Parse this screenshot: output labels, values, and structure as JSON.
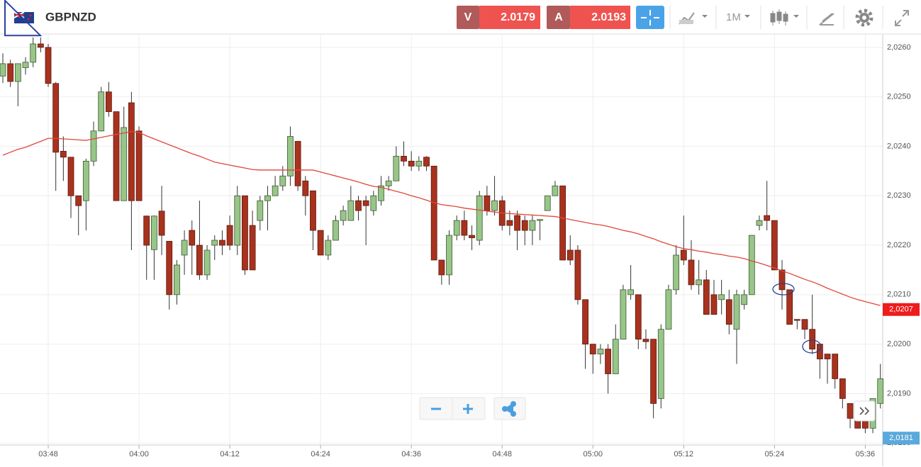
{
  "toolbar": {
    "symbol": "GBPNZD",
    "sell_label": "V",
    "sell_price": "2.0179",
    "buy_label": "A",
    "buy_price": "2.0193",
    "timeframe": "1M"
  },
  "chart_data": {
    "type": "candlestick",
    "categories": [
      null,
      null,
      null,
      null,
      null,
      null,
      "03:48",
      null,
      null,
      null,
      null,
      null,
      null,
      null,
      null,
      null,
      null,
      null,
      "04:00",
      null,
      null,
      null,
      null,
      null,
      null,
      null,
      null,
      null,
      null,
      null,
      "04:12",
      null,
      null,
      null,
      null,
      null,
      null,
      null,
      null,
      null,
      null,
      null,
      "04:24",
      null,
      null,
      null,
      null,
      null,
      null,
      null,
      null,
      null,
      null,
      null,
      "04:36",
      null,
      null,
      null,
      null,
      null,
      null,
      null,
      null,
      null,
      null,
      null,
      "04:48",
      null,
      null,
      null,
      null,
      null,
      null,
      null,
      null,
      null,
      null,
      null,
      "05:00",
      null,
      null,
      null,
      null,
      null,
      null,
      null,
      null,
      null,
      null,
      null,
      "05:12",
      null,
      null,
      null,
      null,
      null,
      null,
      null,
      null,
      null,
      null,
      null,
      "05:24",
      null,
      null,
      null,
      null,
      null,
      null,
      null,
      null,
      null,
      null,
      null,
      "05:36",
      null,
      null
    ],
    "open": [
      2.02542,
      2.02567,
      2.02531,
      2.02559,
      2.0257,
      2.02607,
      2.026,
      2.02527,
      2.0239,
      2.02378,
      2.023,
      2.0229,
      2.0237,
      2.02431,
      2.0251,
      2.0247,
      2.0229,
      2.02488,
      2.02431,
      2.02259,
      2.02191,
      2.02269,
      2.02208,
      2.021,
      2.0218,
      2.0223,
      2.022,
      2.0214,
      2.022,
      2.0221,
      2.0224,
      2.022,
      2.023,
      2.0224,
      2.0225,
      2.0229,
      2.023,
      2.0232,
      2.0234,
      2.0241,
      2.0233,
      2.0231,
      2.0223,
      2.0218,
      2.0221,
      2.0225,
      2.0225,
      2.0229,
      2.0229,
      2.0227,
      2.0229,
      2.0232,
      2.0233,
      2.0238,
      2.0237,
      2.0236,
      2.02378,
      2.0236,
      2.0217,
      2.0214,
      2.0222,
      2.0225,
      2.0222,
      2.0221,
      2.023,
      2.0227,
      2.0229,
      2.0225,
      2.0226,
      2.0225,
      2.0223,
      2.0225,
      2.0227,
      2.023,
      2.0232,
      2.0219,
      2.0219,
      2.0209,
      2.02,
      2.0198,
      2.0199,
      2.0194,
      2.0201,
      2.021,
      2.021,
      2.0201,
      2.0201,
      2.0189,
      2.0203,
      2.0211,
      2.0219,
      2.0217,
      2.0212,
      2.0213,
      2.021,
      2.0209,
      2.0209,
      2.0203,
      2.0208,
      2.021,
      2.0224,
      2.0226,
      2.0225,
      2.0215,
      2.0211,
      2.0205,
      2.0205,
      2.0203,
      2.02,
      2.0198,
      2.0198,
      2.0193,
      2.0188,
      2.0185,
      2.0185,
      2.0183,
      2.0188
    ],
    "close": [
      2.02567,
      2.02531,
      2.02567,
      2.0257,
      2.02607,
      2.026,
      2.02527,
      2.02388,
      2.02378,
      2.023,
      2.0228,
      2.0237,
      2.02431,
      2.0251,
      2.0247,
      2.0229,
      2.02438,
      2.0229,
      2.0229,
      2.022,
      2.02259,
      2.0222,
      2.021,
      2.0216,
      2.0221,
      2.022,
      2.0214,
      2.0219,
      2.0221,
      2.022,
      2.022,
      2.023,
      2.0215,
      2.0215,
      2.0229,
      2.023,
      2.0232,
      2.0234,
      2.0242,
      2.0232,
      2.023,
      2.0223,
      2.0218,
      2.0221,
      2.0225,
      2.0227,
      2.0229,
      2.0227,
      2.0228,
      2.023,
      2.0232,
      2.0233,
      2.0238,
      2.0237,
      2.0236,
      2.0237,
      2.0236,
      2.0217,
      2.0214,
      2.0222,
      2.0225,
      2.0222,
      2.02215,
      2.023,
      2.0227,
      2.0229,
      2.0224,
      2.0224,
      2.0223,
      2.0223,
      2.0225,
      2.02252,
      2.023,
      2.0232,
      2.0217,
      2.0217,
      2.0209,
      2.02,
      2.0198,
      2.0199,
      2.0194,
      2.0201,
      2.0211,
      2.0211,
      2.0201,
      2.02005,
      2.0188,
      2.0203,
      2.0211,
      2.0218,
      2.0217,
      2.0212,
      2.0213,
      2.0206,
      2.0206,
      2.021,
      2.0204,
      2.021,
      2.021,
      2.0222,
      2.0225,
      2.0225,
      2.0215,
      2.0211,
      2.0204,
      2.02048,
      2.0203,
      2.0199,
      2.0197,
      2.0197,
      2.0193,
      2.0189,
      2.0185,
      2.0183,
      2.0183,
      2.0189,
      2.0193
    ],
    "high": [
      2.02588,
      2.02575,
      2.02567,
      2.0258,
      2.0262,
      2.0262,
      2.02607,
      2.0253,
      2.0242,
      2.02378,
      2.023,
      2.02375,
      2.0245,
      2.0252,
      2.0253,
      2.0247,
      2.0248,
      2.0251,
      2.0244,
      2.0226,
      2.0226,
      2.0232,
      2.02208,
      2.0217,
      2.0223,
      2.0225,
      2.0229,
      2.022,
      2.0222,
      2.0223,
      2.0226,
      2.0232,
      2.023,
      2.0227,
      2.023,
      2.0232,
      2.0234,
      2.0236,
      2.0244,
      2.0241,
      2.0234,
      2.0231,
      2.0223,
      2.0222,
      2.0226,
      2.0228,
      2.0232,
      2.023,
      2.023,
      2.0231,
      2.0234,
      2.0234,
      2.024,
      2.0241,
      2.0239,
      2.0238,
      2.0238,
      2.0236,
      2.0217,
      2.0223,
      2.0226,
      2.0227,
      2.0224,
      2.0231,
      2.0232,
      2.0234,
      2.023,
      2.0227,
      2.0227,
      2.0226,
      2.0226,
      2.02252,
      2.023,
      2.0233,
      2.0232,
      2.0222,
      2.022,
      2.0209,
      2.02,
      2.02,
      2.02,
      2.0204,
      2.0212,
      2.0216,
      2.021,
      2.0203,
      2.0201,
      2.0204,
      2.0212,
      2.022,
      2.0226,
      2.0221,
      2.0217,
      2.0215,
      2.0213,
      2.0213,
      2.0211,
      2.0211,
      2.0211,
      2.0222,
      2.0226,
      2.0233,
      2.0225,
      2.0217,
      2.0211,
      2.0205,
      2.0205,
      2.021,
      2.02,
      2.0198,
      2.0198,
      2.0193,
      2.0188,
      2.0186,
      2.0187,
      2.0189,
      2.0196
    ],
    "low": [
      2.02528,
      2.0252,
      2.02481,
      2.02545,
      2.0256,
      2.0259,
      2.0252,
      2.0231,
      2.0233,
      2.02255,
      2.0222,
      2.0223,
      2.0236,
      2.0243,
      2.0246,
      2.0229,
      2.0229,
      2.0219,
      2.0229,
      2.0213,
      2.0213,
      2.0218,
      2.0207,
      2.0208,
      2.0214,
      2.0214,
      2.0213,
      2.0213,
      2.0217,
      2.0218,
      2.0219,
      2.0218,
      2.0214,
      2.0215,
      2.0223,
      2.0223,
      2.023,
      2.0231,
      2.0232,
      2.0231,
      2.0226,
      2.0219,
      2.0218,
      2.0217,
      2.0221,
      2.0224,
      2.0225,
      2.0225,
      2.022,
      2.0226,
      2.0228,
      2.0231,
      2.0233,
      2.0236,
      2.0235,
      2.0235,
      2.0235,
      2.0217,
      2.0212,
      2.0212,
      2.0221,
      2.0221,
      2.0219,
      2.022,
      2.0226,
      2.0226,
      2.0223,
      2.0222,
      2.0219,
      2.022,
      2.022,
      2.0221,
      2.0227,
      2.023,
      2.0217,
      2.0216,
      2.0208,
      2.0195,
      2.0194,
      2.0196,
      2.019,
      2.0194,
      2.0201,
      2.0209,
      2.0199,
      2.0199,
      2.0185,
      2.0187,
      2.0203,
      2.021,
      2.0216,
      2.0211,
      2.021,
      2.0206,
      2.0206,
      2.0206,
      2.0202,
      2.0196,
      2.0207,
      2.021,
      2.0223,
      2.0223,
      2.0215,
      2.0207,
      2.0204,
      2.0203,
      2.0201,
      2.0198,
      2.0193,
      2.0192,
      2.0191,
      2.0187,
      2.0183,
      2.0183,
      2.0182,
      2.0182,
      2.0187
    ],
    "up_color": "#98c588",
    "down_color": "#a8321e",
    "ma": {
      "color": "#e0473a",
      "values": [
        2.02382,
        2.02388,
        2.02394,
        2.02398,
        2.02404,
        2.0241,
        2.02416,
        2.02416,
        2.02415,
        2.02414,
        2.02413,
        2.02412,
        2.02415,
        2.02418,
        2.02421,
        2.02424,
        2.02427,
        2.0243,
        2.02428,
        2.02421,
        2.02415,
        2.02409,
        2.02403,
        2.02397,
        2.02391,
        2.02385,
        2.0238,
        2.02374,
        2.02368,
        2.02365,
        2.02362,
        2.02359,
        2.02356,
        2.02353,
        2.02352,
        2.02352,
        2.02352,
        2.02352,
        2.02352,
        2.02352,
        2.02352,
        2.02352,
        2.02348,
        2.02344,
        2.0234,
        2.02336,
        2.02332,
        2.02328,
        2.02323,
        2.02319,
        2.02317,
        2.02313,
        2.02309,
        2.02305,
        2.023,
        2.02296,
        2.02291,
        2.02286,
        2.02282,
        2.0228,
        2.02278,
        2.02275,
        2.02273,
        2.02271,
        2.02269,
        2.02267,
        2.02265,
        2.02264,
        2.02263,
        2.02262,
        2.02261,
        2.0226,
        2.02259,
        2.02258,
        2.02255,
        2.02252,
        2.02249,
        2.02246,
        2.02243,
        2.02241,
        2.02238,
        2.02234,
        2.0223,
        2.02227,
        2.02223,
        2.02218,
        2.02213,
        2.02207,
        2.02202,
        2.02197,
        2.02193,
        2.02191,
        2.02188,
        2.02186,
        2.02183,
        2.02181,
        2.02178,
        2.02176,
        2.02173,
        2.02168,
        2.02164,
        2.02159,
        2.02154,
        2.02148,
        2.02143,
        2.02137,
        2.02131,
        2.02126,
        2.0212,
        2.02113,
        2.02107,
        2.02101,
        2.02095,
        2.0209,
        2.02086,
        2.02082,
        2.02078
      ]
    },
    "ylim": [
      2.01796,
      2.02627
    ],
    "yticks": [
      {
        "value": 2.018,
        "label": "2,0180"
      },
      {
        "value": 2.019,
        "label": "2,0190"
      },
      {
        "value": 2.02,
        "label": "2,0200"
      },
      {
        "value": 2.021,
        "label": "2,0210"
      },
      {
        "value": 2.022,
        "label": "2,0220"
      },
      {
        "value": 2.023,
        "label": "2,0230"
      },
      {
        "value": 2.024,
        "label": "2,0240"
      },
      {
        "value": 2.025,
        "label": "2,0250"
      },
      {
        "value": 2.026,
        "label": "2,0260"
      }
    ],
    "price_labels": [
      {
        "value": 2.0207,
        "label": "2,0207",
        "color": "#ee1c1c"
      },
      {
        "value": 2.0181,
        "label": "2,0181",
        "color": "#5aa9dc"
      }
    ],
    "grid": true
  }
}
